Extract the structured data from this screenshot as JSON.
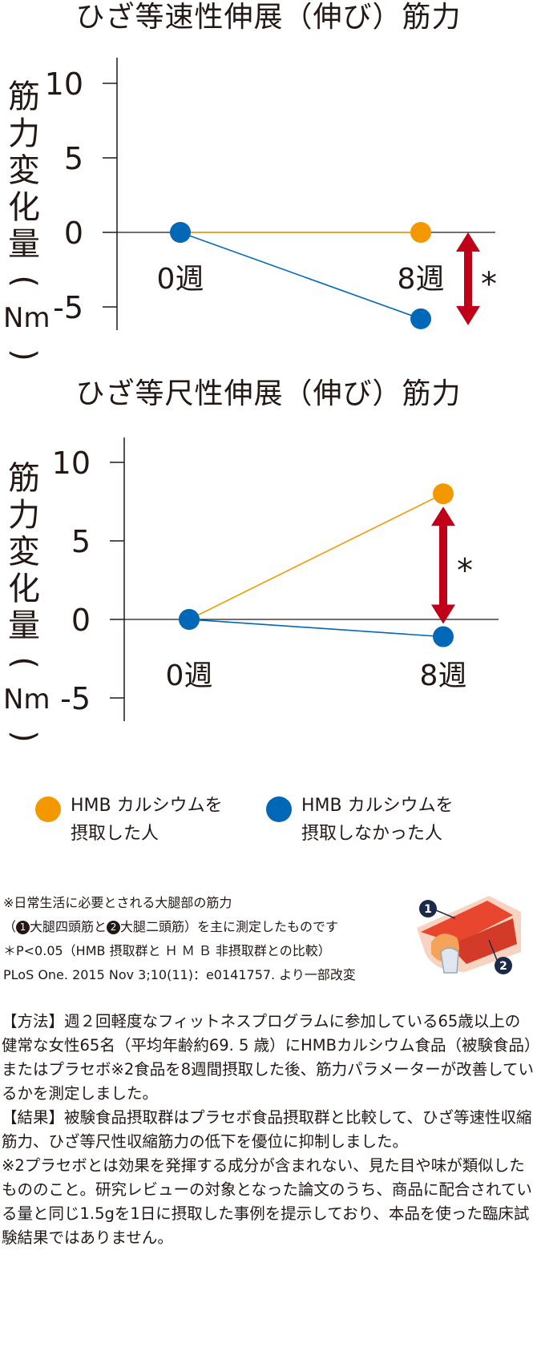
{
  "charts_ylabel_chars": [
    "筋",
    "力",
    "変",
    "化",
    "量",
    "(",
    "Nm",
    ")"
  ],
  "chart_data": [
    {
      "type": "line",
      "title": "ひざ等速性伸展（伸び）筋力",
      "ylabel": "筋力変化量（Nm）",
      "categories": [
        "0週",
        "8週"
      ],
      "y_ticks": [
        "10",
        "5",
        "0",
        "-5"
      ],
      "ylim": [
        -6.5,
        11.5
      ],
      "series": [
        {
          "name": "HMB カルシウムを摂取した人",
          "color": "#f39800",
          "values": [
            0,
            0
          ]
        },
        {
          "name": "HMB カルシウムを摂取しなかった人",
          "color": "#0068b7",
          "values": [
            0,
            -5.8
          ]
        }
      ],
      "annotation": "*",
      "grid": false
    },
    {
      "type": "line",
      "title": "ひざ等尺性伸展（伸び）筋力",
      "ylabel": "筋力変化量（Nm）",
      "categories": [
        "0週",
        "8週"
      ],
      "y_ticks": [
        "10",
        "5",
        "0",
        "-5"
      ],
      "ylim": [
        -6.5,
        11.5
      ],
      "series": [
        {
          "name": "HMB カルシウムを摂取した人",
          "color": "#f39800",
          "values": [
            0,
            8.0
          ]
        },
        {
          "name": "HMB カルシウムを摂取しなかった人",
          "color": "#0068b7",
          "values": [
            0,
            -1.1
          ]
        }
      ],
      "annotation": "*",
      "grid": false
    }
  ],
  "legend": [
    {
      "line1": "HMB カルシウムを",
      "line2": "摂取した人",
      "color": "#f39800"
    },
    {
      "line1": "HMB カルシウムを",
      "line2": "摂取しなかった人",
      "color": "#0068b7"
    }
  ],
  "notes": {
    "line1": "※日常生活に必要とされる大腿部の筋力",
    "line2_num1": "1",
    "line2_a": "大腿四頭筋と",
    "line2_num2": "2",
    "line2_b": "大腿二頭筋）を主に測定したものです",
    "line2_open": "（",
    "line3": "＊P<0.05（HMB 摂取群と Ｈ Ｍ Ｂ 非摂取群との比較）",
    "line4": "PLoS One. 2015 Nov 3;10(11)：e0141757. より一部改変"
  },
  "knee_labels": [
    "1",
    "2"
  ],
  "colors": {
    "arrow": "#c00018",
    "axis": "#231815",
    "orange": "#f39800",
    "blue": "#0068b7",
    "knee_dot": "#1c2a4a"
  },
  "body": {
    "method": "【方法】週２回軽度なフィットネスプログラムに参加している65歳以上の健常な女性65名（平均年齢約69. 5 歳）にHMBカルシウム食品（被験食品）またはプラセボ※2食品を8週間摂取した後、筋力パラメーターが改善しているかを測定しました。",
    "result": "【結果】被験食品摂取群はプラセボ食品摂取群と比較して、ひざ等速性収縮筋力、ひざ等尺性収縮筋力の低下を優位に抑制しました。",
    "footnote": "※2プラセボとは効果を発揮する成分が含まれない、見た目や味が類似したもののこと。研究レビューの対象となった論文のうち、商品に配合されている量と同じ1.5gを1日に摂取した事例を提示しており、本品を使った臨床試験結果ではありません。"
  }
}
